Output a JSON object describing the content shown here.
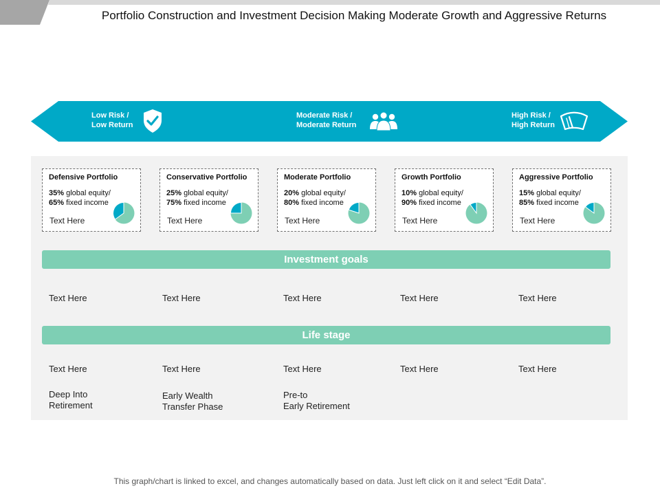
{
  "title": "Portfolio Construction and Investment Decision Making Moderate Growth and Aggressive Returns",
  "colors": {
    "teal": "#00a9c7",
    "mint": "#7ecfb4",
    "panel": "#f2f2f2"
  },
  "risk_levels": [
    {
      "line1": "Low Risk /",
      "line2": "Low Return",
      "icon": "shield-check-icon"
    },
    {
      "line1": "Moderate Risk /",
      "line2": "Moderate Return",
      "icon": "people-group-icon"
    },
    {
      "line1": "High Risk /",
      "line2": "High Return",
      "icon": "windshield-wiper-icon"
    }
  ],
  "portfolios": [
    {
      "name": "Defensive Portfolio",
      "equity_label": "35%",
      "equity_text": " global equity/",
      "fixed_label": "65%",
      "fixed_text": " fixed income",
      "equity_pct": 35,
      "footer": "Text Here"
    },
    {
      "name": "Conservative Portfolio",
      "equity_label": "25%",
      "equity_text": " global equity/",
      "fixed_label": "75%",
      "fixed_text": " fixed income",
      "equity_pct": 25,
      "footer": "Text Here"
    },
    {
      "name": "Moderate Portfolio",
      "equity_label": "20%",
      "equity_text": " global equity/",
      "fixed_label": "80%",
      "fixed_text": " fixed income",
      "equity_pct": 20,
      "footer": "Text Here"
    },
    {
      "name": "Growth Portfolio",
      "equity_label": "10%",
      "equity_text": " global equity/",
      "fixed_label": "90%",
      "fixed_text": " fixed income",
      "equity_pct": 10,
      "footer": "Text Here"
    },
    {
      "name": "Aggressive Portfolio",
      "equity_label": "15%",
      "equity_text": " global equity/",
      "fixed_label": "85%",
      "fixed_text": " fixed income",
      "equity_pct": 15,
      "footer": "Text Here"
    }
  ],
  "investment_goals": {
    "label": "Investment goals",
    "items": [
      "Text Here",
      "Text Here",
      "Text Here",
      "Text Here",
      "Text Here"
    ]
  },
  "life_stage": {
    "label": "Life stage",
    "items": [
      "Text Here",
      "Text Here",
      "Text Here",
      "Text Here",
      "Text Here"
    ],
    "stages": [
      {
        "line1": "Deep Into",
        "line2": "Retirement"
      },
      {
        "line1": "Early Wealth",
        "line2": "Transfer Phase"
      },
      {
        "line1": "Pre-to",
        "line2": "Early Retirement"
      }
    ]
  },
  "footnote": "This graph/chart is linked to excel, and changes automatically based on data. Just left click on it and select “Edit Data”."
}
